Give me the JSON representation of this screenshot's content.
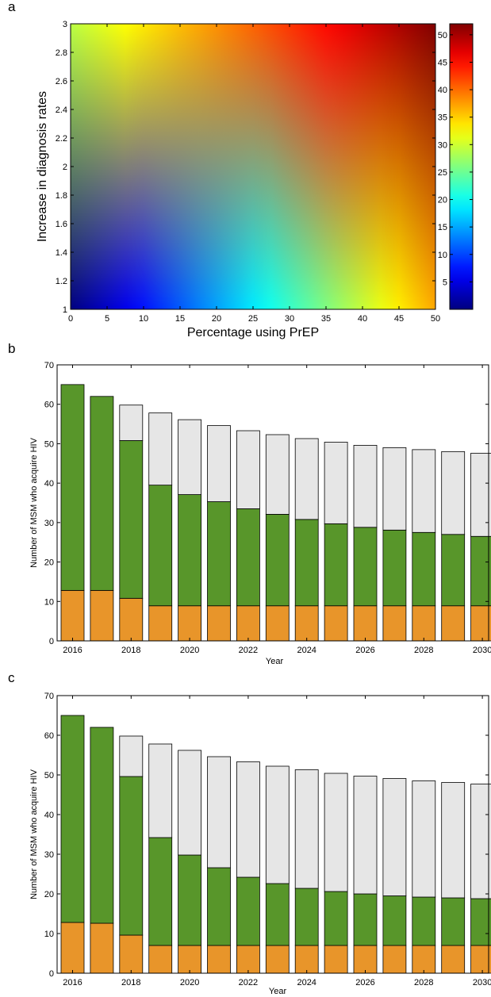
{
  "panels": {
    "a": "a",
    "b": "b",
    "c": "c"
  },
  "chart_data": [
    {
      "id": "a",
      "type": "heatmap",
      "xlabel": "Percentage using PrEP",
      "ylabel": "Increase in diagnosis rates",
      "xlim": [
        0,
        50
      ],
      "ylim": [
        1,
        3
      ],
      "xticks": [
        0,
        5,
        10,
        15,
        20,
        25,
        30,
        35,
        40,
        45,
        50
      ],
      "yticks": [
        1,
        1.2,
        1.4,
        1.6,
        1.8,
        2,
        2.2,
        2.4,
        2.6,
        2.8,
        3
      ],
      "ytick_labels": [
        "1",
        "1.2",
        "1.4",
        "1.6",
        "1.8",
        "2",
        "2.2",
        "2.4",
        "2.6",
        "2.8",
        "3"
      ],
      "colorbar": {
        "colormap": "jet",
        "range": [
          0,
          52
        ],
        "ticks": [
          5,
          10,
          15,
          20,
          25,
          30,
          35,
          40,
          45,
          50
        ]
      },
      "corner_values": {
        "x0_y1": 0,
        "x50_y1": 37,
        "x0_y3": 29,
        "x50_y3": 52
      }
    },
    {
      "id": "b",
      "type": "bar",
      "stacked": true,
      "xlabel": "Year",
      "ylabel": "Number of MSM who acquire HIV",
      "ylim": [
        0,
        70
      ],
      "yticks": [
        0,
        10,
        20,
        30,
        40,
        50,
        60,
        70
      ],
      "categories": [
        "2016",
        "2017",
        "2018",
        "2019",
        "2020",
        "2021",
        "2022",
        "2023",
        "2024",
        "2025",
        "2026",
        "2027",
        "2028",
        "2029",
        "2030"
      ],
      "xtick_labels": [
        "2016",
        "",
        "2018",
        "",
        "2020",
        "",
        "2022",
        "",
        "2024",
        "",
        "2026",
        "",
        "2028",
        "",
        "2030"
      ],
      "series": [
        {
          "color": "#e8952a",
          "values": [
            12.8,
            12.8,
            10.8,
            8.9,
            8.9,
            8.9,
            8.9,
            8.9,
            8.9,
            8.9,
            8.9,
            8.9,
            8.9,
            8.9,
            8.9
          ]
        },
        {
          "color": "#58962a",
          "values": [
            52.2,
            49.2,
            40.0,
            30.6,
            28.2,
            26.4,
            24.6,
            23.2,
            21.9,
            20.8,
            19.9,
            19.2,
            18.6,
            18.1,
            17.6
          ]
        },
        {
          "color": "#e6e6e6",
          "values": [
            0,
            0,
            9.0,
            18.3,
            19.0,
            19.3,
            19.8,
            20.2,
            20.5,
            20.7,
            20.8,
            20.9,
            21.0,
            21.0,
            21.1
          ]
        }
      ]
    },
    {
      "id": "c",
      "type": "bar",
      "stacked": true,
      "xlabel": "Year",
      "ylabel": "Number of MSM who acquire HIV",
      "ylim": [
        0,
        70
      ],
      "yticks": [
        0,
        10,
        20,
        30,
        40,
        50,
        60,
        70
      ],
      "categories": [
        "2016",
        "2017",
        "2018",
        "2019",
        "2020",
        "2021",
        "2022",
        "2023",
        "2024",
        "2025",
        "2026",
        "2027",
        "2028",
        "2029",
        "2030"
      ],
      "xtick_labels": [
        "2016",
        "",
        "2018",
        "",
        "2020",
        "",
        "2022",
        "",
        "2024",
        "",
        "2026",
        "",
        "2028",
        "",
        "2030"
      ],
      "series": [
        {
          "color": "#e8952a",
          "values": [
            12.8,
            12.6,
            9.6,
            7.0,
            7.0,
            7.0,
            7.0,
            7.0,
            7.0,
            7.0,
            7.0,
            7.0,
            7.0,
            7.0,
            7.0
          ]
        },
        {
          "color": "#58962a",
          "values": [
            52.2,
            49.4,
            40.0,
            27.2,
            22.8,
            19.6,
            17.2,
            15.6,
            14.4,
            13.6,
            13.0,
            12.5,
            12.2,
            12.0,
            11.8
          ]
        },
        {
          "color": "#e6e6e6",
          "values": [
            0,
            0,
            10.2,
            23.6,
            26.4,
            28.0,
            29.1,
            29.6,
            29.9,
            29.8,
            29.7,
            29.6,
            29.3,
            29.1,
            28.9
          ]
        }
      ]
    }
  ]
}
